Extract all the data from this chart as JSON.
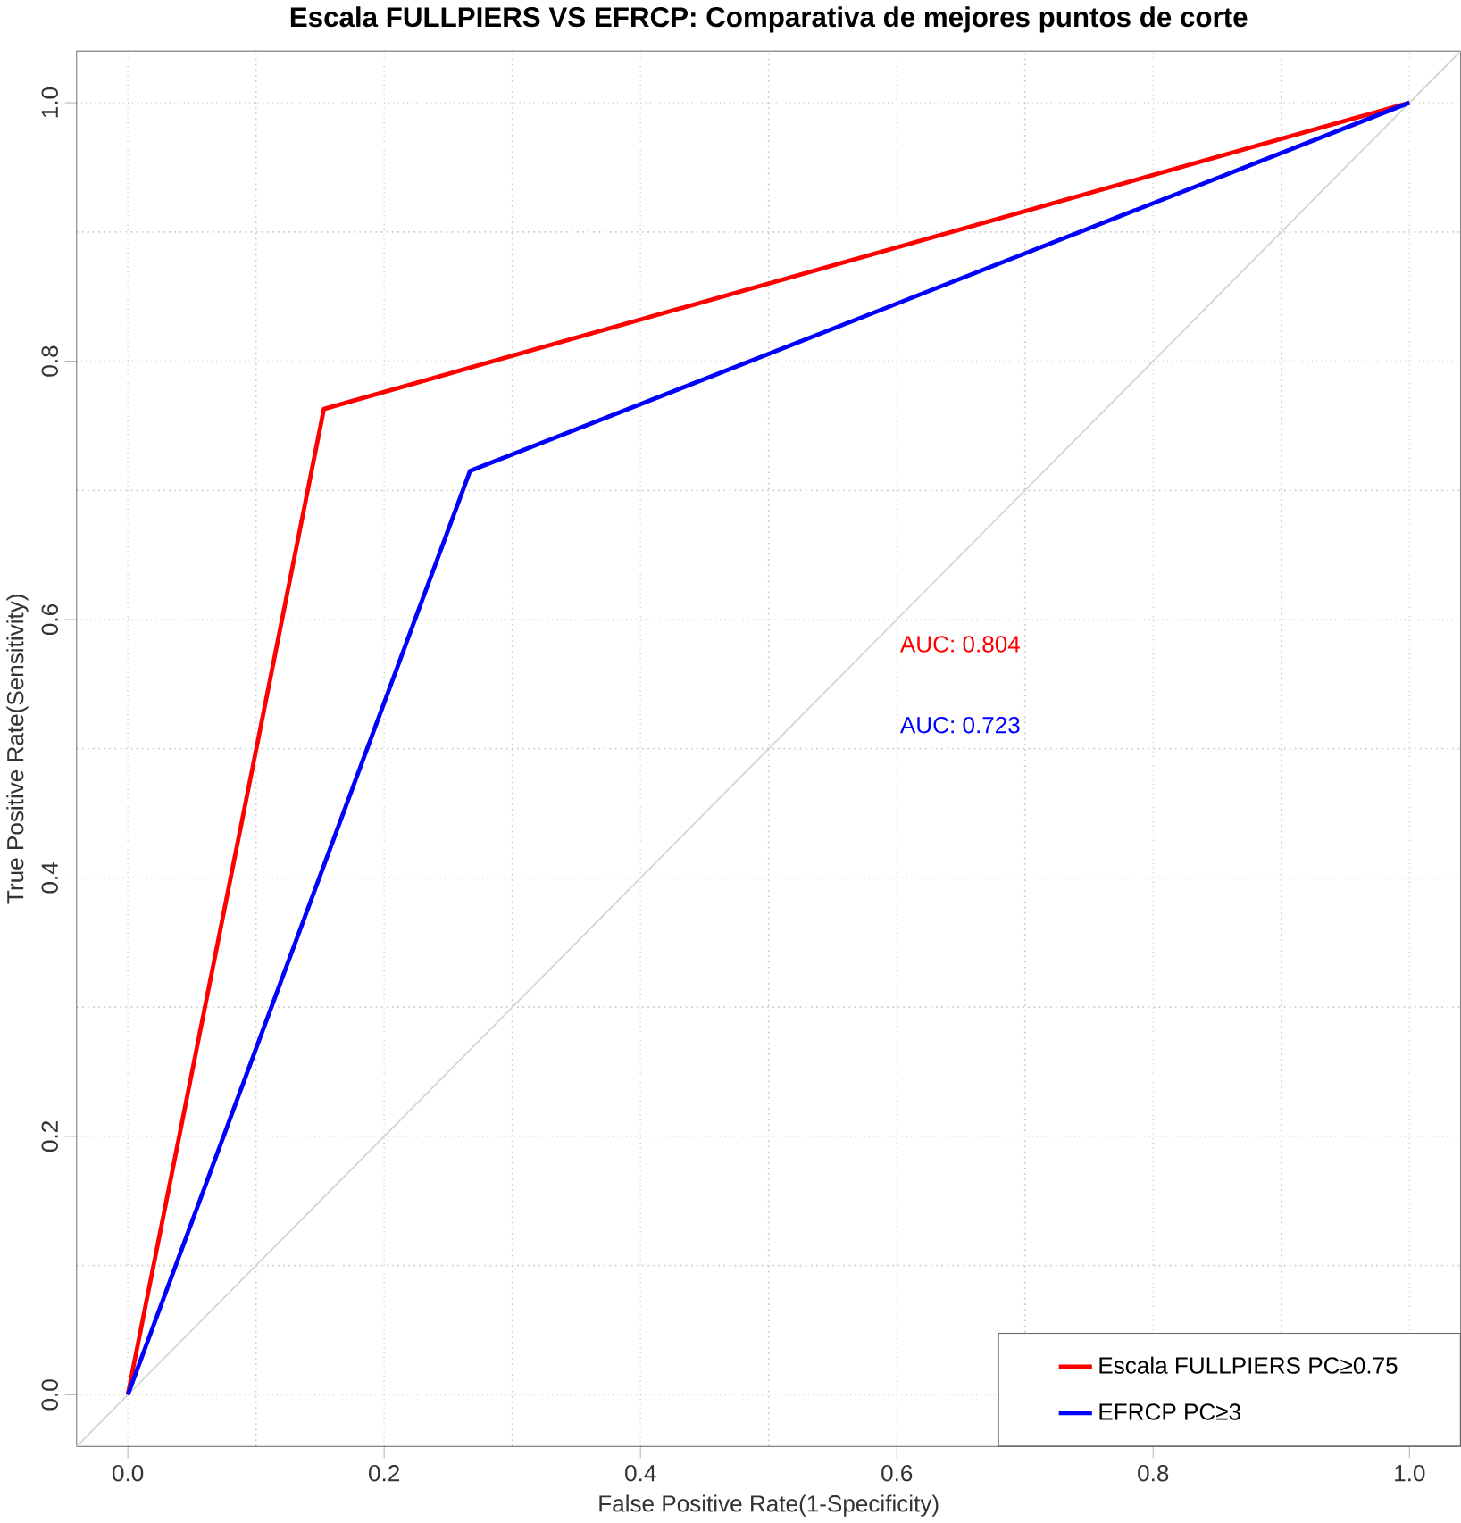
{
  "chart_data": {
    "type": "line",
    "title": "Escala FULLPIERS VS EFRCP: Comparativa de mejores puntos de corte",
    "xlabel": "False Positive Rate(1-Specificity)",
    "ylabel": "True Positive Rate(Sensitivity)",
    "xlim": [
      -0.04,
      1.04
    ],
    "ylim": [
      -0.04,
      1.04
    ],
    "xticks": [
      {
        "value": 0,
        "label": "0.0"
      },
      0.2,
      0.4,
      0.6,
      0.8,
      {
        "value": 1,
        "label": "1.0"
      }
    ],
    "yticks": [
      {
        "value": 0,
        "label": "0.0"
      },
      0.2,
      0.4,
      0.6,
      0.8,
      {
        "value": 1,
        "label": "1.0"
      }
    ],
    "grid": true,
    "legend": "bottom right",
    "marker": "none",
    "line_style": "solid",
    "series": [
      {
        "name": "Escala FULLPIERS PC≥0.75",
        "color": "#ff0000",
        "x": [
          0,
          0.153,
          1
        ],
        "values": [
          0,
          0.763,
          1
        ]
      },
      {
        "name": "EFRCP PC≥3",
        "color": "#0000ff",
        "x": [
          0,
          0.267,
          1
        ],
        "values": [
          0,
          0.715,
          1
        ]
      },
      {
        "color": "#d3d3d3",
        "x": [
          -0.04,
          1.04
        ],
        "values": [
          -0.04,
          1.04
        ]
      }
    ],
    "annotations": [
      "AUC: 0.804",
      "AUC: 0.723"
    ]
  }
}
